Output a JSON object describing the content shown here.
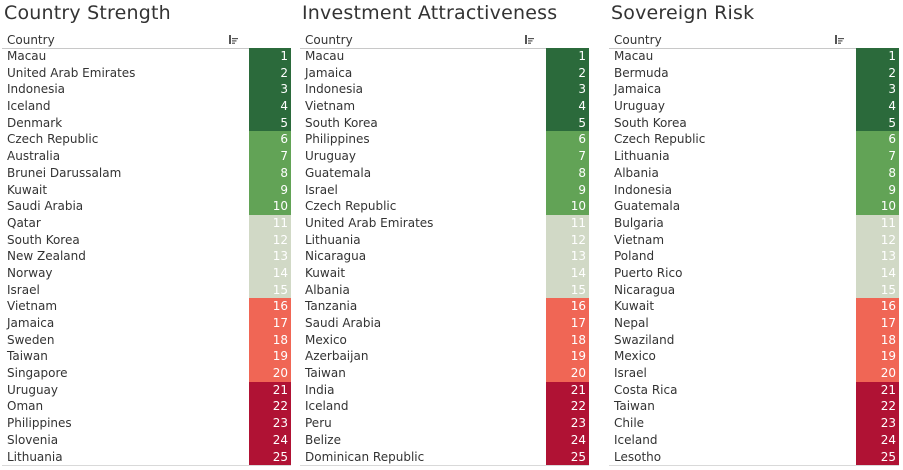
{
  "colors": {
    "1-5": "#2b6a3b",
    "6-10": "#62a356",
    "11-15": "#d1d9c6",
    "16-20": "#f06655",
    "21-25": "#b01234"
  },
  "chart_data": [
    {
      "type": "table",
      "title": "Country Strength",
      "column_header": "Country",
      "rows": [
        {
          "country": "Macau",
          "rank": 1
        },
        {
          "country": "United Arab Emirates",
          "rank": 2
        },
        {
          "country": "Indonesia",
          "rank": 3
        },
        {
          "country": "Iceland",
          "rank": 4
        },
        {
          "country": "Denmark",
          "rank": 5
        },
        {
          "country": "Czech Republic",
          "rank": 6
        },
        {
          "country": "Australia",
          "rank": 7
        },
        {
          "country": "Brunei Darussalam",
          "rank": 8
        },
        {
          "country": "Kuwait",
          "rank": 9
        },
        {
          "country": "Saudi Arabia",
          "rank": 10
        },
        {
          "country": "Qatar",
          "rank": 11
        },
        {
          "country": "South Korea",
          "rank": 12
        },
        {
          "country": "New Zealand",
          "rank": 13
        },
        {
          "country": "Norway",
          "rank": 14
        },
        {
          "country": "Israel",
          "rank": 15
        },
        {
          "country": "Vietnam",
          "rank": 16
        },
        {
          "country": "Jamaica",
          "rank": 17
        },
        {
          "country": "Sweden",
          "rank": 18
        },
        {
          "country": "Taiwan",
          "rank": 19
        },
        {
          "country": "Singapore",
          "rank": 20
        },
        {
          "country": "Uruguay",
          "rank": 21
        },
        {
          "country": "Oman",
          "rank": 22
        },
        {
          "country": "Philippines",
          "rank": 23
        },
        {
          "country": "Slovenia",
          "rank": 24
        },
        {
          "country": "Lithuania",
          "rank": 25
        }
      ]
    },
    {
      "type": "table",
      "title": "Investment Attractiveness",
      "column_header": "Country",
      "rows": [
        {
          "country": "Macau",
          "rank": 1
        },
        {
          "country": "Jamaica",
          "rank": 2
        },
        {
          "country": "Indonesia",
          "rank": 3
        },
        {
          "country": "Vietnam",
          "rank": 4
        },
        {
          "country": "South Korea",
          "rank": 5
        },
        {
          "country": "Philippines",
          "rank": 6
        },
        {
          "country": "Uruguay",
          "rank": 7
        },
        {
          "country": "Guatemala",
          "rank": 8
        },
        {
          "country": "Israel",
          "rank": 9
        },
        {
          "country": "Czech Republic",
          "rank": 10
        },
        {
          "country": "United Arab Emirates",
          "rank": 11
        },
        {
          "country": "Lithuania",
          "rank": 12
        },
        {
          "country": "Nicaragua",
          "rank": 13
        },
        {
          "country": "Kuwait",
          "rank": 14
        },
        {
          "country": "Albania",
          "rank": 15
        },
        {
          "country": "Tanzania",
          "rank": 16
        },
        {
          "country": "Saudi Arabia",
          "rank": 17
        },
        {
          "country": "Mexico",
          "rank": 18
        },
        {
          "country": "Azerbaijan",
          "rank": 19
        },
        {
          "country": "Taiwan",
          "rank": 20
        },
        {
          "country": "India",
          "rank": 21
        },
        {
          "country": "Iceland",
          "rank": 22
        },
        {
          "country": "Peru",
          "rank": 23
        },
        {
          "country": "Belize",
          "rank": 24
        },
        {
          "country": "Dominican Republic",
          "rank": 25
        }
      ]
    },
    {
      "type": "table",
      "title": "Sovereign Risk",
      "column_header": "Country",
      "rows": [
        {
          "country": "Macau",
          "rank": 1
        },
        {
          "country": "Bermuda",
          "rank": 2
        },
        {
          "country": "Jamaica",
          "rank": 3
        },
        {
          "country": "Uruguay",
          "rank": 4
        },
        {
          "country": "South Korea",
          "rank": 5
        },
        {
          "country": "Czech Republic",
          "rank": 6
        },
        {
          "country": "Lithuania",
          "rank": 7
        },
        {
          "country": "Albania",
          "rank": 8
        },
        {
          "country": "Indonesia",
          "rank": 9
        },
        {
          "country": "Guatemala",
          "rank": 10
        },
        {
          "country": "Bulgaria",
          "rank": 11
        },
        {
          "country": "Vietnam",
          "rank": 12
        },
        {
          "country": "Poland",
          "rank": 13
        },
        {
          "country": "Puerto Rico",
          "rank": 14
        },
        {
          "country": "Nicaragua",
          "rank": 15
        },
        {
          "country": "Kuwait",
          "rank": 16
        },
        {
          "country": "Nepal",
          "rank": 17
        },
        {
          "country": "Swaziland",
          "rank": 18
        },
        {
          "country": "Mexico",
          "rank": 19
        },
        {
          "country": "Israel",
          "rank": 20
        },
        {
          "country": "Costa Rica",
          "rank": 21
        },
        {
          "country": "Taiwan",
          "rank": 22
        },
        {
          "country": "Chile",
          "rank": 23
        },
        {
          "country": "Iceland",
          "rank": 24
        },
        {
          "country": "Lesotho",
          "rank": 25
        }
      ]
    }
  ]
}
